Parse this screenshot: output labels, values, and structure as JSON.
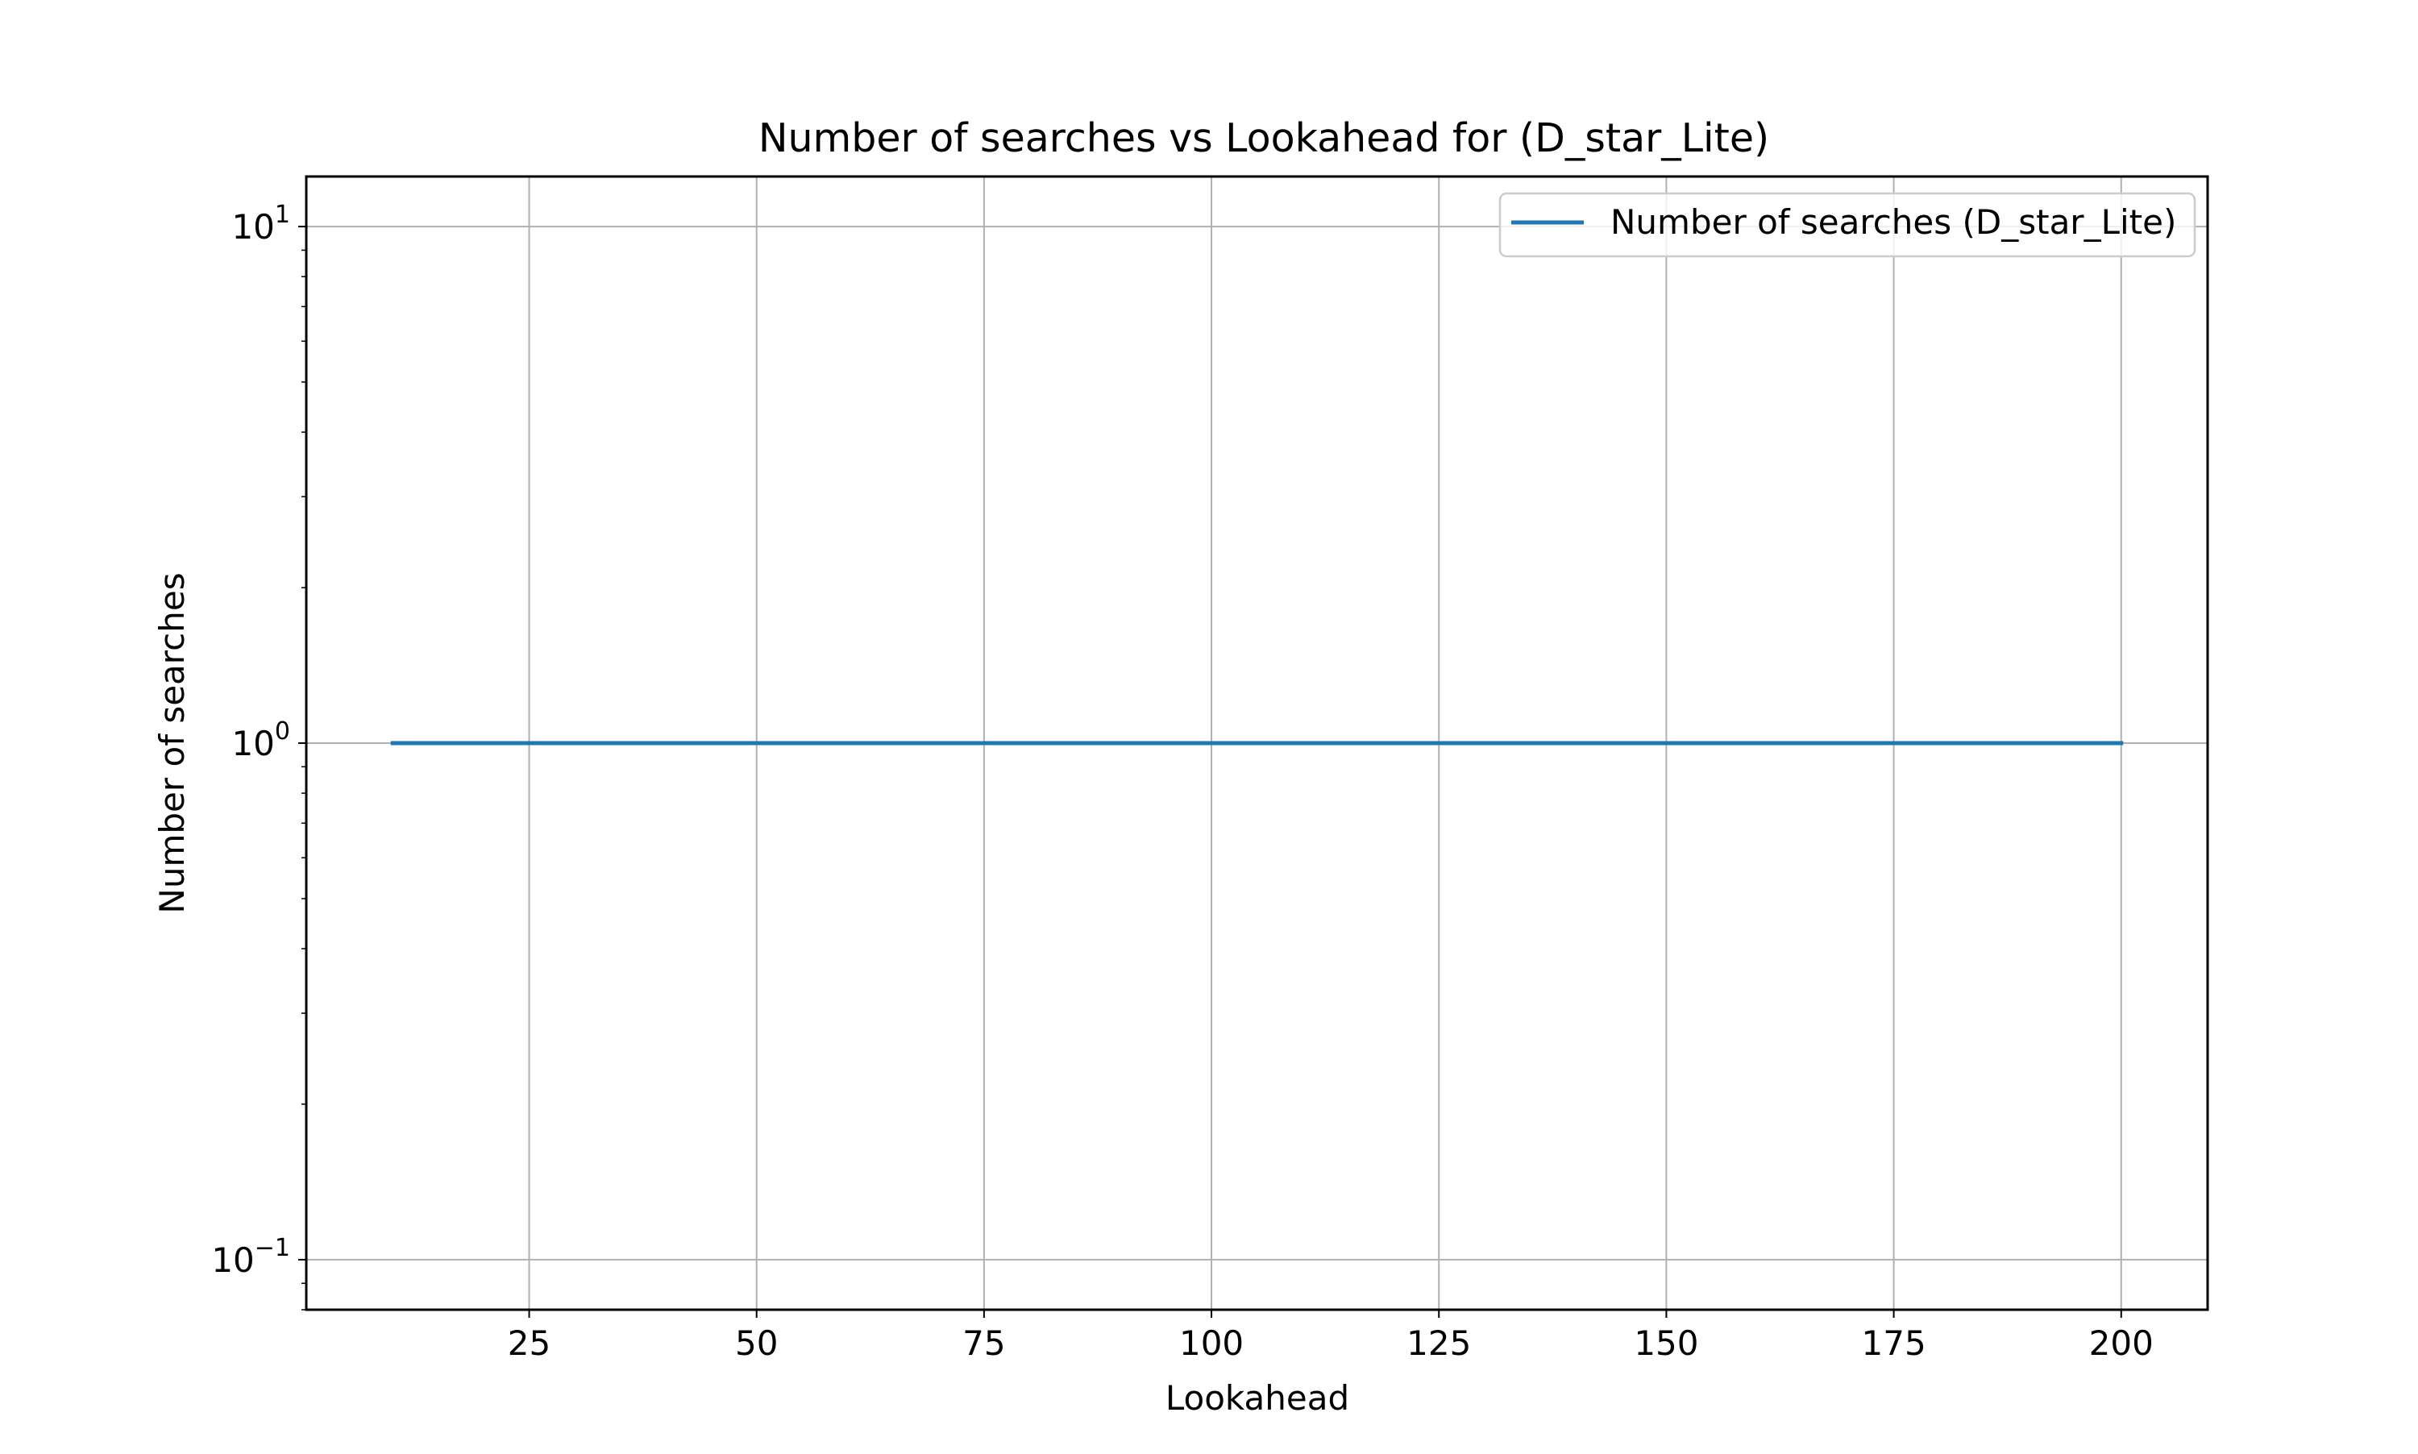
{
  "chart_data": {
    "type": "line",
    "title": "Number of searches vs Lookahead for  (D_star_Lite)",
    "xlabel": "Lookahead",
    "ylabel": "Number of searches",
    "xscale": "linear",
    "yscale": "log",
    "xlim": [
      0.5,
      209.5
    ],
    "ylim": [
      0.08,
      12.5
    ],
    "grid": true,
    "legend_position": "top-right",
    "x_ticks": [
      25,
      50,
      75,
      100,
      125,
      150,
      175,
      200
    ],
    "x_tick_labels": [
      "25",
      "50",
      "75",
      "100",
      "125",
      "150",
      "175",
      "200"
    ],
    "y_ticks": [
      {
        "value": 0.1,
        "base": "10",
        "exp": "−1"
      },
      {
        "value": 1,
        "base": "10",
        "exp": "0"
      },
      {
        "value": 10,
        "base": "10",
        "exp": "1"
      }
    ],
    "series": [
      {
        "name": "Number of searches (D_star_Lite)",
        "color": "#1f77b4",
        "x": [
          10,
          200
        ],
        "y": [
          1,
          1
        ]
      }
    ]
  }
}
